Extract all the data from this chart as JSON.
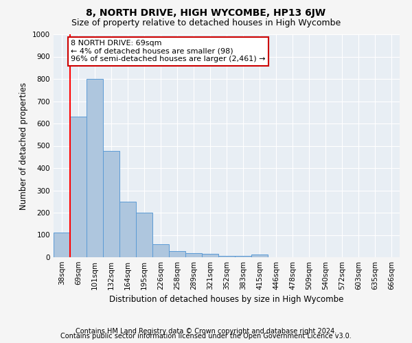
{
  "title": "8, NORTH DRIVE, HIGH WYCOMBE, HP13 6JW",
  "subtitle": "Size of property relative to detached houses in High Wycombe",
  "xlabel": "Distribution of detached houses by size in High Wycombe",
  "ylabel": "Number of detached properties",
  "categories": [
    "38sqm",
    "69sqm",
    "101sqm",
    "132sqm",
    "164sqm",
    "195sqm",
    "226sqm",
    "258sqm",
    "289sqm",
    "321sqm",
    "352sqm",
    "383sqm",
    "415sqm",
    "446sqm",
    "478sqm",
    "509sqm",
    "540sqm",
    "572sqm",
    "603sqm",
    "635sqm",
    "666sqm"
  ],
  "values": [
    110,
    630,
    800,
    478,
    250,
    200,
    60,
    28,
    20,
    14,
    5,
    5,
    13,
    0,
    0,
    0,
    0,
    0,
    0,
    0,
    0
  ],
  "bar_color": "#aec6de",
  "bar_edge_color": "#5b9bd5",
  "red_line_x": 0.5,
  "annotation_text": "8 NORTH DRIVE: 69sqm\n← 4% of detached houses are smaller (98)\n96% of semi-detached houses are larger (2,461) →",
  "annotation_box_color": "#ffffff",
  "annotation_box_edge_color": "#cc0000",
  "ylim": [
    0,
    1000
  ],
  "yticks": [
    0,
    100,
    200,
    300,
    400,
    500,
    600,
    700,
    800,
    900,
    1000
  ],
  "footer_line1": "Contains HM Land Registry data © Crown copyright and database right 2024.",
  "footer_line2": "Contains public sector information licensed under the Open Government Licence v3.0.",
  "bg_color": "#e8eef4",
  "fig_bg_color": "#f5f5f5",
  "grid_color": "#ffffff",
  "title_fontsize": 10,
  "subtitle_fontsize": 9,
  "axis_label_fontsize": 8.5,
  "tick_fontsize": 7.5,
  "annotation_fontsize": 8,
  "footer_fontsize": 7
}
